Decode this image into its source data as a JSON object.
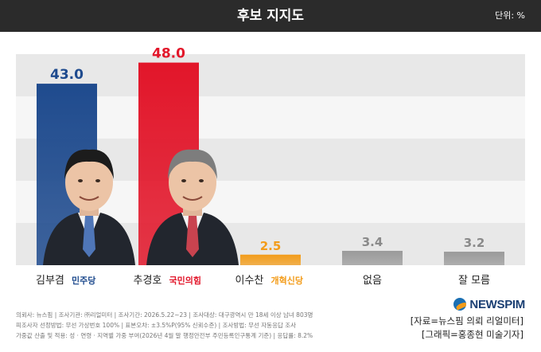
{
  "header": {
    "title": "후보 지지도",
    "unit": "단위: %"
  },
  "chart_data": {
    "type": "bar",
    "title": "후보 지지도",
    "unit": "단위: %",
    "categories": [
      "김부겸",
      "추경호",
      "이수찬",
      "없음",
      "잘 모름"
    ],
    "values": [
      43.0,
      48.0,
      2.5,
      3.4,
      3.2
    ],
    "value_labels": [
      "43.0",
      "48.0",
      "2.5",
      "3.4",
      "3.2"
    ],
    "party_labels": [
      "민주당",
      "국민의힘",
      "개혁신당",
      "",
      ""
    ],
    "colors": [
      "#1f4b8e",
      "#e2162a",
      "#f39c1a",
      "#9a9a9a",
      "#9a9a9a"
    ],
    "label_colors": [
      "#1f4b8e",
      "#e2162a",
      "#f39c1a",
      "#8a8a8a",
      "#8a8a8a"
    ],
    "party_colors": [
      "#1f4b8e",
      "#e2162a",
      "#f39c1a"
    ],
    "ylim": [
      0,
      50
    ],
    "grid": true
  },
  "footnotes": [
    "의뢰사: 뉴스핌 | 조사기관: ㈜리얼미터 | 조사기간: 2026.5.22~23 | 조사대상: 대구광역시 만 18세 이상 남녀 803명",
    "피조사자 선정방법: 무선 가상번호 100% | 표본오차: ±3.5%P(95% 신뢰수준) | 조사방법: 무선 자동응답 조사",
    "가중값 산출 및 적용: 성 · 연령 · 지역별 가중 부여(2026년 4월 말 행정안전부 주민등록인구통계 기준) | 응답률: 8.2%"
  ],
  "logo": {
    "text": "NEWSPIM"
  },
  "credits": [
    "[자료=뉴스핌 의뢰 리얼미터]",
    "[그래픽=홍종현 미술기자]"
  ]
}
